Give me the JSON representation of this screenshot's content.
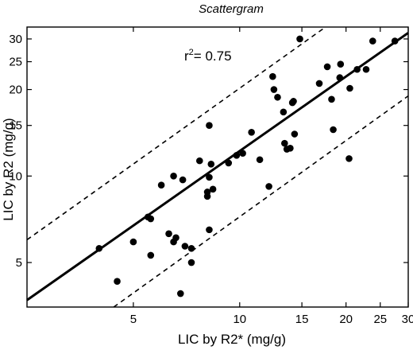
{
  "chart_data": {
    "type": "scatter",
    "title": "Scattergram",
    "xlabel": "LIC by R2* (mg/g)",
    "ylabel": "LIC by R2 (mg/g)",
    "annotation_prefix": "r",
    "annotation_exponent": "2",
    "annotation_value": "= 0.75",
    "x_scale": "log",
    "y_scale": "log",
    "xlim": [
      2.5,
      30
    ],
    "ylim": [
      3.5,
      33
    ],
    "x_ticks": [
      5,
      10,
      15,
      20,
      25,
      30
    ],
    "y_ticks": [
      5,
      10,
      15,
      20,
      25,
      30
    ],
    "grid": false,
    "series": [
      {
        "points": [
          [
            4.0,
            5.6
          ],
          [
            4.5,
            4.3
          ],
          [
            5.0,
            5.9
          ],
          [
            5.5,
            7.2
          ],
          [
            5.6,
            7.1
          ],
          [
            5.6,
            5.3
          ],
          [
            6.0,
            9.3
          ],
          [
            6.3,
            6.3
          ],
          [
            6.5,
            10.0
          ],
          [
            6.5,
            5.9
          ],
          [
            6.6,
            6.1
          ],
          [
            6.8,
            3.9
          ],
          [
            6.9,
            9.7
          ],
          [
            7.0,
            5.7
          ],
          [
            7.3,
            5.0
          ],
          [
            7.3,
            5.6
          ],
          [
            7.7,
            11.3
          ],
          [
            8.1,
            8.5
          ],
          [
            8.1,
            8.8
          ],
          [
            8.2,
            9.9
          ],
          [
            8.2,
            6.5
          ],
          [
            8.2,
            15.0
          ],
          [
            8.3,
            11.0
          ],
          [
            8.4,
            9.0
          ],
          [
            9.3,
            11.1
          ],
          [
            9.8,
            11.8
          ],
          [
            10.2,
            12.0
          ],
          [
            10.8,
            14.2
          ],
          [
            11.4,
            11.4
          ],
          [
            12.1,
            9.2
          ],
          [
            12.4,
            22.2
          ],
          [
            12.5,
            20.0
          ],
          [
            12.8,
            18.8
          ],
          [
            13.3,
            16.7
          ],
          [
            13.4,
            13.0
          ],
          [
            13.6,
            12.4
          ],
          [
            13.9,
            12.5
          ],
          [
            14.1,
            18.0
          ],
          [
            14.2,
            18.2
          ],
          [
            14.3,
            14.0
          ],
          [
            14.8,
            30.0
          ],
          [
            16.8,
            21.0
          ],
          [
            17.7,
            24.0
          ],
          [
            18.2,
            18.5
          ],
          [
            18.4,
            14.5
          ],
          [
            19.2,
            22.0
          ],
          [
            19.3,
            24.5
          ],
          [
            20.4,
            11.5
          ],
          [
            20.5,
            20.2
          ],
          [
            21.5,
            23.5
          ],
          [
            22.8,
            23.5
          ],
          [
            23.8,
            29.5
          ],
          [
            27.5,
            29.5
          ]
        ]
      }
    ],
    "regression_line": {
      "style": "solid",
      "x": [
        2.5,
        30
      ],
      "y": [
        3.7,
        31.5
      ]
    },
    "confidence_upper": {
      "style": "dashed",
      "x": [
        2.5,
        17.5
      ],
      "y": [
        6.0,
        33
      ]
    },
    "confidence_lower": {
      "style": "dashed",
      "x": [
        4.4,
        30
      ],
      "y": [
        3.5,
        19.0
      ]
    }
  }
}
